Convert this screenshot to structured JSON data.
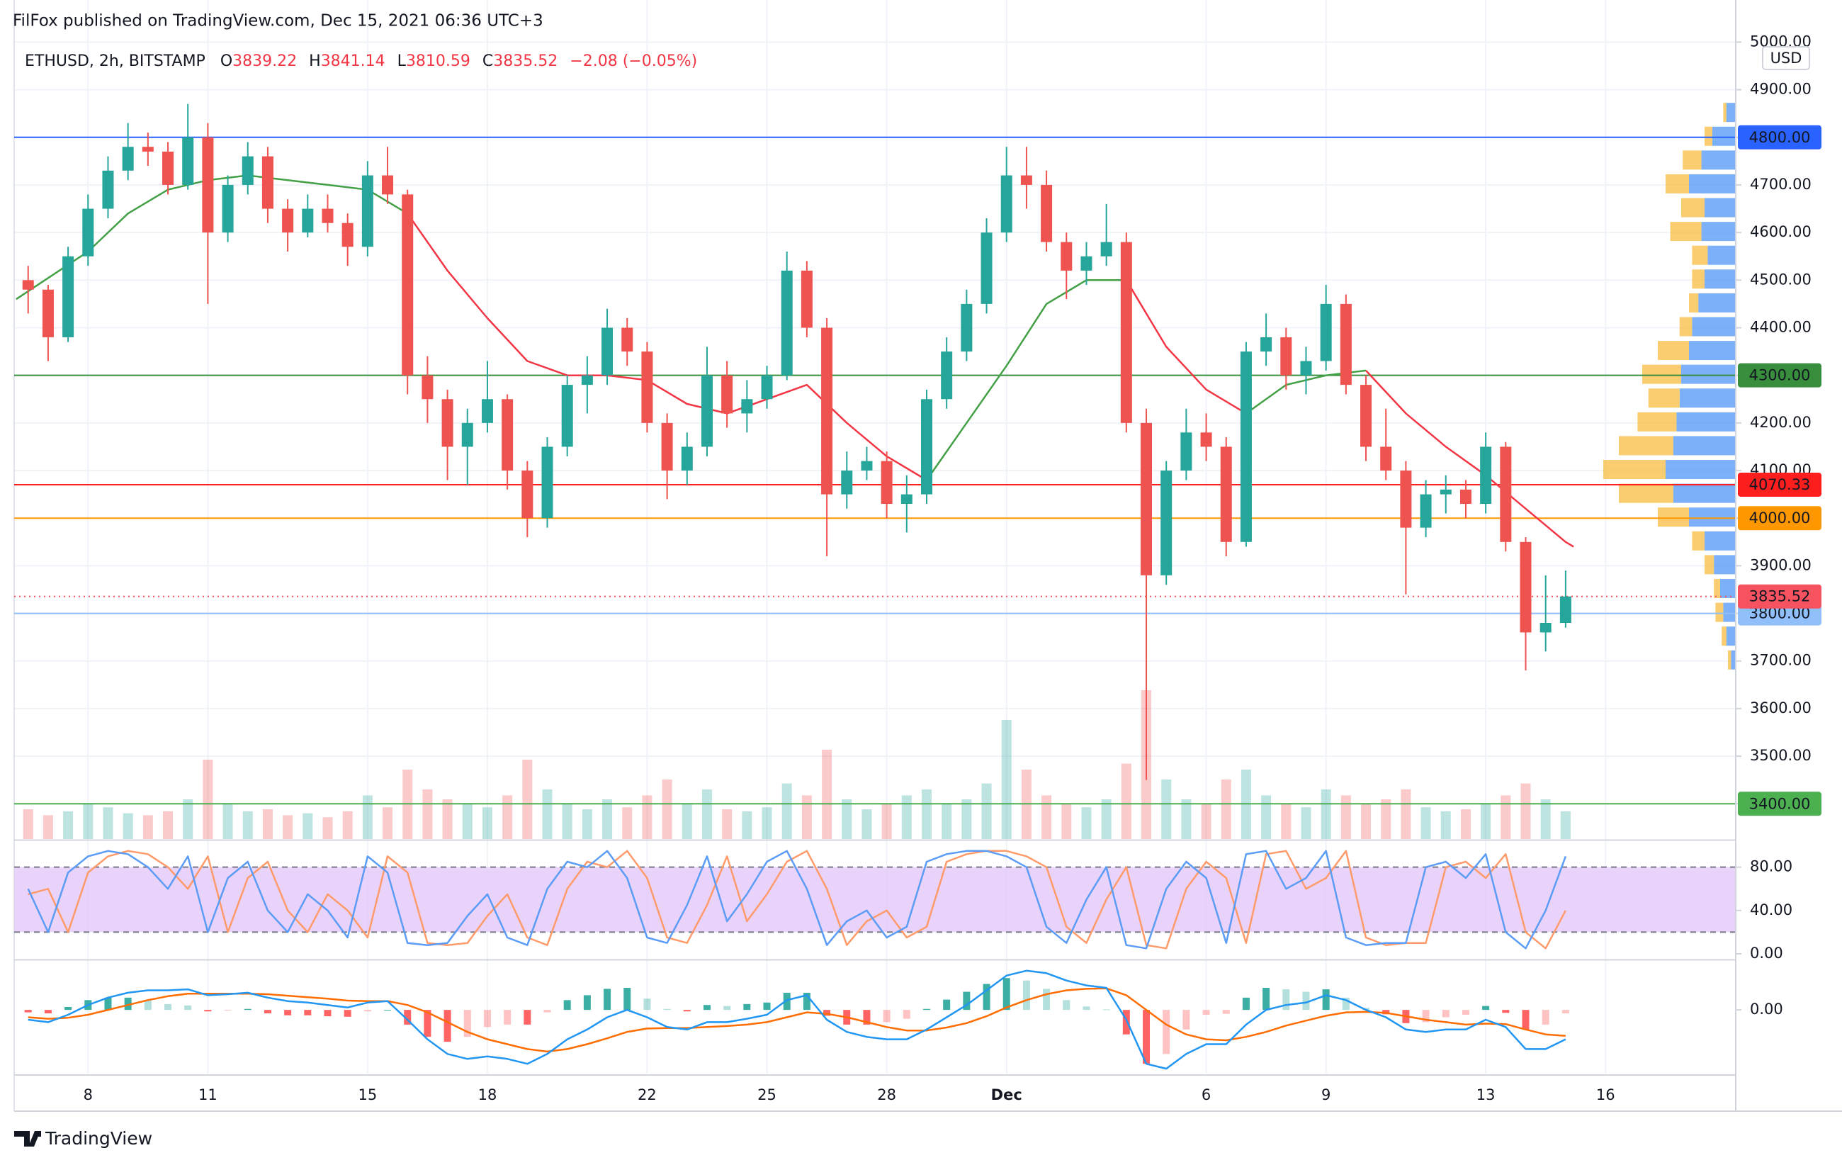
{
  "chart_data": {
    "type": "candlestick",
    "header": "FilFox published on TradingView.com, Dec 15, 2021 06:36 UTC+3",
    "symbol": "ETHUSD, 2h, BITSTAMP",
    "ohlc": [
      {
        "label": "O",
        "value": 3839.22
      },
      {
        "label": "H",
        "value": 3841.14
      },
      {
        "label": "L",
        "value": 3810.59
      },
      {
        "label": "C",
        "value": 3835.52
      }
    ],
    "change": "−2.08 (−0.05%)",
    "ohlc_color": "#f23645",
    "currency": "USD",
    "footer": "TradingView",
    "up_color": "#26a69a",
    "down_color": "#ef5350",
    "x": [
      6.5,
      7,
      7.5,
      8,
      8.5,
      9,
      9.5,
      10,
      10.5,
      11,
      11.5,
      12,
      12.5,
      13,
      13.5,
      14,
      14.5,
      15,
      15.5,
      16,
      16.5,
      17,
      17.5,
      18,
      18.5,
      19,
      19.5,
      20,
      20.5,
      21,
      21.5,
      22,
      22.5,
      23,
      23.5,
      24,
      24.5,
      25,
      25.5,
      26,
      26.5,
      27,
      27.5,
      28,
      28.5,
      29,
      29.5,
      30,
      30.5,
      31,
      31.5,
      32,
      32.5,
      33,
      33.5,
      34,
      34.5,
      35,
      35.5,
      36,
      36.5,
      37,
      37.5,
      38,
      38.5,
      39,
      39.5,
      40,
      40.5,
      41,
      41.5,
      42,
      42.5,
      43,
      43.5,
      44,
      44.5,
      45
    ],
    "open": [
      4500,
      4480,
      4380,
      4550,
      4650,
      4730,
      4780,
      4770,
      4700,
      4800,
      4600,
      4700,
      4760,
      4650,
      4600,
      4650,
      4620,
      4570,
      4720,
      4680,
      4300,
      4250,
      4150,
      4200,
      4250,
      4100,
      4000,
      4150,
      4280,
      4300,
      4400,
      4350,
      4200,
      4100,
      4150,
      4300,
      4220,
      4250,
      4300,
      4520,
      4400,
      4050,
      4100,
      4120,
      4030,
      4050,
      4250,
      4350,
      4450,
      4600,
      4720,
      4700,
      4580,
      4520,
      4550,
      4580,
      4200,
      3880,
      4100,
      4180,
      4150,
      3950,
      4350,
      4380,
      4300,
      4330,
      4450,
      4280,
      4150,
      4100,
      3980,
      4050,
      4060,
      4030,
      4150,
      3950,
      3760,
      3780
    ],
    "high": [
      4530,
      4490,
      4570,
      4680,
      4760,
      4830,
      4810,
      4790,
      4870,
      4830,
      4720,
      4790,
      4780,
      4670,
      4680,
      4680,
      4640,
      4750,
      4780,
      4690,
      4340,
      4270,
      4230,
      4330,
      4260,
      4120,
      4170,
      4300,
      4340,
      4440,
      4420,
      4370,
      4220,
      4180,
      4360,
      4330,
      4290,
      4320,
      4560,
      4540,
      4420,
      4140,
      4150,
      4140,
      4090,
      4270,
      4380,
      4480,
      4630,
      4780,
      4780,
      4730,
      4600,
      4580,
      4660,
      4600,
      4230,
      4120,
      4230,
      4220,
      4170,
      4370,
      4430,
      4400,
      4360,
      4490,
      4470,
      4300,
      4230,
      4120,
      4080,
      4090,
      4080,
      4180,
      4160,
      3960,
      3880,
      3890
    ],
    "low": [
      4430,
      4330,
      4370,
      4530,
      4630,
      4710,
      4740,
      4680,
      4690,
      4450,
      4580,
      4680,
      4620,
      4560,
      4590,
      4600,
      4530,
      4550,
      4660,
      4260,
      4200,
      4080,
      4070,
      4180,
      4060,
      3960,
      3980,
      4130,
      4220,
      4280,
      4320,
      4180,
      4040,
      4070,
      4130,
      4190,
      4180,
      4230,
      4290,
      4380,
      3920,
      4020,
      4080,
      4000,
      3970,
      4030,
      4230,
      4330,
      4430,
      4580,
      4650,
      4560,
      4460,
      4490,
      4530,
      4180,
      3450,
      3860,
      4080,
      4120,
      3920,
      3940,
      4320,
      4270,
      4260,
      4310,
      4260,
      4120,
      4080,
      3840,
      3960,
      4010,
      4000,
      4010,
      3930,
      3680,
      3720,
      3770
    ],
    "close": [
      4480,
      4380,
      4550,
      4650,
      4730,
      4780,
      4770,
      4700,
      4800,
      4600,
      4700,
      4760,
      4650,
      4600,
      4650,
      4620,
      4570,
      4720,
      4680,
      4300,
      4250,
      4150,
      4200,
      4250,
      4100,
      4000,
      4150,
      4280,
      4300,
      4400,
      4350,
      4200,
      4100,
      4150,
      4300,
      4220,
      4250,
      4300,
      4520,
      4400,
      4050,
      4100,
      4120,
      4030,
      4050,
      4250,
      4350,
      4450,
      4600,
      4720,
      4700,
      4580,
      4520,
      4550,
      4580,
      4200,
      3880,
      4100,
      4180,
      4150,
      3950,
      4350,
      4380,
      4300,
      4330,
      4450,
      4280,
      4150,
      4100,
      3980,
      4050,
      4060,
      4030,
      4150,
      3950,
      3760,
      3780,
      3835.52
    ],
    "volume": [
      15,
      12,
      14,
      18,
      16,
      13,
      12,
      14,
      20,
      40,
      18,
      14,
      15,
      12,
      13,
      11,
      14,
      22,
      16,
      35,
      25,
      20,
      18,
      16,
      22,
      40,
      25,
      18,
      15,
      20,
      16,
      22,
      30,
      18,
      25,
      15,
      14,
      16,
      28,
      22,
      45,
      20,
      15,
      18,
      22,
      25,
      18,
      20,
      28,
      60,
      35,
      22,
      18,
      16,
      20,
      38,
      75,
      30,
      20,
      18,
      30,
      35,
      22,
      18,
      16,
      25,
      22,
      18,
      20,
      25,
      16,
      14,
      15,
      18,
      22,
      28,
      20,
      14
    ],
    "ma_x": [
      6.2,
      8,
      9,
      10,
      11,
      12,
      13,
      14,
      15,
      16,
      17,
      18,
      19,
      20,
      21,
      22,
      23,
      24,
      25,
      26,
      27,
      28,
      29,
      30,
      31,
      32,
      33,
      34,
      35,
      36,
      37,
      38,
      39,
      40,
      41,
      42,
      43,
      44,
      45,
      45.2
    ],
    "ma": [
      {
        "color": "#43a047",
        "values": [
          4460,
          4560,
          4640,
          4690,
          4710,
          4720,
          4710,
          4700,
          4690,
          4640,
          null,
          null,
          null,
          null,
          null,
          null,
          null,
          null,
          null,
          null,
          null,
          null,
          4080,
          4200,
          4320,
          4450,
          4500,
          4500,
          null,
          null,
          4220,
          4280,
          4300,
          4310,
          null,
          null,
          null,
          null,
          null,
          null
        ]
      },
      {
        "color": "#f23645",
        "values": [
          null,
          null,
          null,
          null,
          null,
          null,
          null,
          null,
          null,
          4640,
          4520,
          4420,
          4330,
          4300,
          4300,
          4290,
          4240,
          4220,
          4250,
          4280,
          4200,
          4130,
          4080,
          null,
          null,
          null,
          null,
          4500,
          4360,
          4270,
          4220,
          null,
          null,
          4310,
          4220,
          4150,
          4090,
          4020,
          3950,
          3940
        ]
      }
    ],
    "xlim": [
      6.15,
      49.26
    ],
    "xticks": [
      8,
      11,
      15,
      18,
      22,
      25,
      28,
      {
        "value": 31,
        "label": "Dec"
      },
      {
        "value": 36,
        "label": "6"
      },
      {
        "value": 39,
        "label": "9"
      },
      {
        "value": 43,
        "label": "13"
      },
      {
        "value": 46,
        "label": "16"
      }
    ],
    "ylim": [
      3326,
      5014
    ],
    "yticks": [
      {
        "value": 3400,
        "label": "3400.00"
      },
      {
        "value": 3500,
        "label": "3500.00"
      },
      {
        "value": 3600,
        "label": "3600.00"
      },
      {
        "value": 3700,
        "label": "3700.00"
      },
      {
        "value": 3800,
        "label": "3800.00"
      },
      {
        "value": 3900,
        "label": "3900.00"
      },
      {
        "value": 4000,
        "label": "4000.00"
      },
      {
        "value": 4100,
        "label": "4100.00"
      },
      {
        "value": 4200,
        "label": "4200.00"
      },
      {
        "value": 4300,
        "label": "4300.00"
      },
      {
        "value": 4400,
        "label": "4400.00"
      },
      {
        "value": 4500,
        "label": "4500.00"
      },
      {
        "value": 4600,
        "label": "4600.00"
      },
      {
        "value": 4700,
        "label": "4700.00"
      },
      {
        "value": 4800,
        "label": "4800.00"
      },
      {
        "value": 4900,
        "label": "4900.00"
      },
      {
        "value": 5000,
        "label": "5000.00"
      }
    ],
    "grid": true,
    "levels": [
      {
        "value": 4800,
        "label": "4800.00",
        "color": "#2962ff",
        "text_color": "#ffffff"
      },
      {
        "value": 4300,
        "label": "4300.00",
        "color": "#388e3c",
        "text_color": "#ffffff"
      },
      {
        "value": 4070.33,
        "label": "4070.33",
        "color": "#ff1e1e",
        "text_color": "#ffffff"
      },
      {
        "value": 4000,
        "label": "4000.00",
        "color": "#ff9800",
        "text_color": "#131722"
      },
      {
        "value": 3800,
        "label": "3800.00",
        "color": "#90bff9",
        "text_color": "#131722"
      },
      {
        "value": 3400,
        "label": "3400.00",
        "color": "#4caf50",
        "text_color": "#131722"
      }
    ],
    "last_price": {
      "value": 3835.52,
      "color": "#f7525f"
    },
    "volume_profile": {
      "prices": [
        3700,
        3750,
        3800,
        3850,
        3900,
        3950,
        4000,
        4050,
        4100,
        4150,
        4200,
        4250,
        4300,
        4350,
        4400,
        4450,
        4500,
        4550,
        4600,
        4650,
        4700,
        4750,
        4800,
        4850
      ],
      "up": [
        3,
        6,
        8,
        10,
        14,
        20,
        30,
        40,
        45,
        40,
        38,
        36,
        35,
        30,
        28,
        24,
        20,
        18,
        22,
        20,
        30,
        22,
        15,
        6
      ],
      "down": [
        2,
        3,
        5,
        4,
        6,
        8,
        20,
        35,
        40,
        35,
        25,
        20,
        25,
        20,
        8,
        6,
        8,
        10,
        20,
        15,
        15,
        12,
        5,
        2
      ],
      "up_color": "#5b9cf6",
      "down_color": "#f7c14c"
    },
    "stoch": {
      "ylim": [
        -4.6,
        104
      ],
      "yticks": [
        {
          "value": 0,
          "label": "0.00"
        },
        {
          "value": 40,
          "label": "40.00"
        },
        {
          "value": 80,
          "label": "80.00"
        }
      ],
      "band": [
        20,
        80
      ],
      "band_color": "#e3c8fa",
      "k": {
        "color": "#5b9cf6",
        "values": [
          60,
          20,
          75,
          90,
          95,
          92,
          80,
          60,
          90,
          20,
          70,
          85,
          40,
          20,
          55,
          40,
          15,
          90,
          75,
          10,
          8,
          10,
          35,
          55,
          15,
          8,
          60,
          85,
          80,
          95,
          70,
          15,
          10,
          45,
          90,
          30,
          55,
          85,
          95,
          60,
          8,
          30,
          40,
          15,
          25,
          85,
          92,
          95,
          95,
          90,
          80,
          25,
          10,
          50,
          80,
          8,
          5,
          60,
          85,
          70,
          10,
          92,
          95,
          60,
          70,
          95,
          15,
          8,
          10,
          10,
          80,
          85,
          70,
          92,
          20,
          5,
          40,
          90
        ]
      },
      "d": {
        "color": "#ff9b6a",
        "values": [
          55,
          60,
          20,
          75,
          90,
          95,
          92,
          80,
          60,
          90,
          20,
          70,
          85,
          40,
          20,
          55,
          40,
          15,
          90,
          75,
          10,
          8,
          10,
          35,
          55,
          15,
          8,
          60,
          85,
          80,
          95,
          70,
          15,
          10,
          45,
          90,
          30,
          55,
          85,
          95,
          60,
          8,
          30,
          40,
          15,
          25,
          85,
          92,
          95,
          95,
          90,
          80,
          25,
          10,
          50,
          80,
          8,
          5,
          60,
          85,
          70,
          10,
          92,
          95,
          60,
          70,
          95,
          15,
          8,
          10,
          10,
          80,
          85,
          70,
          92,
          20,
          5,
          40
        ]
      }
    },
    "macd": {
      "ylim": [
        -130,
        100
      ],
      "yticks": [
        {
          "value": 0,
          "label": "0.00"
        }
      ],
      "macd": {
        "color": "#2196f3",
        "values": [
          -20,
          -25,
          -10,
          10,
          25,
          35,
          40,
          40,
          42,
          30,
          32,
          35,
          25,
          18,
          15,
          10,
          5,
          15,
          18,
          -20,
          -60,
          -90,
          -100,
          -95,
          -100,
          -110,
          -90,
          -60,
          -40,
          -15,
          0,
          -15,
          -35,
          -40,
          -25,
          -25,
          -18,
          -10,
          20,
          30,
          -20,
          -45,
          -55,
          -60,
          -60,
          -40,
          -15,
          10,
          40,
          70,
          80,
          75,
          60,
          50,
          45,
          -20,
          -110,
          -120,
          -90,
          -70,
          -70,
          -30,
          0,
          10,
          15,
          30,
          20,
          0,
          -15,
          -40,
          -45,
          -40,
          -40,
          -20,
          -35,
          -80,
          -80,
          -60
        ]
      },
      "signal": {
        "color": "#ff6d00",
        "values": [
          -15,
          -18,
          -16,
          -10,
          0,
          10,
          20,
          28,
          33,
          33,
          33,
          33,
          32,
          29,
          26,
          23,
          19,
          18,
          18,
          10,
          -5,
          -25,
          -45,
          -60,
          -70,
          -80,
          -85,
          -80,
          -70,
          -58,
          -45,
          -38,
          -37,
          -37,
          -35,
          -33,
          -30,
          -25,
          -15,
          -5,
          -8,
          -15,
          -25,
          -35,
          -42,
          -42,
          -36,
          -27,
          -13,
          5,
          20,
          32,
          40,
          43,
          44,
          30,
          0,
          -30,
          -50,
          -60,
          -62,
          -55,
          -45,
          -32,
          -22,
          -12,
          -5,
          -4,
          -6,
          -13,
          -20,
          -25,
          -30,
          -28,
          -29,
          -40,
          -50,
          -53
        ]
      },
      "hist": {
        "up_color": "#26a69a",
        "down_color": "#ff5252",
        "values": [
          -5,
          -7,
          6,
          20,
          25,
          25,
          20,
          12,
          9,
          -3,
          -1,
          2,
          -7,
          -11,
          -11,
          -13,
          -14,
          -3,
          0,
          -30,
          -55,
          -65,
          -55,
          -35,
          -30,
          -30,
          -5,
          20,
          30,
          43,
          45,
          23,
          2,
          -3,
          10,
          8,
          12,
          15,
          35,
          35,
          -12,
          -30,
          -30,
          -25,
          -18,
          2,
          21,
          37,
          53,
          65,
          60,
          43,
          20,
          7,
          1,
          -50,
          -110,
          -90,
          -40,
          -10,
          -8,
          25,
          45,
          42,
          37,
          42,
          25,
          4,
          -9,
          -27,
          -25,
          -15,
          -10,
          8,
          -6,
          -40,
          -30,
          -7
        ]
      }
    }
  }
}
